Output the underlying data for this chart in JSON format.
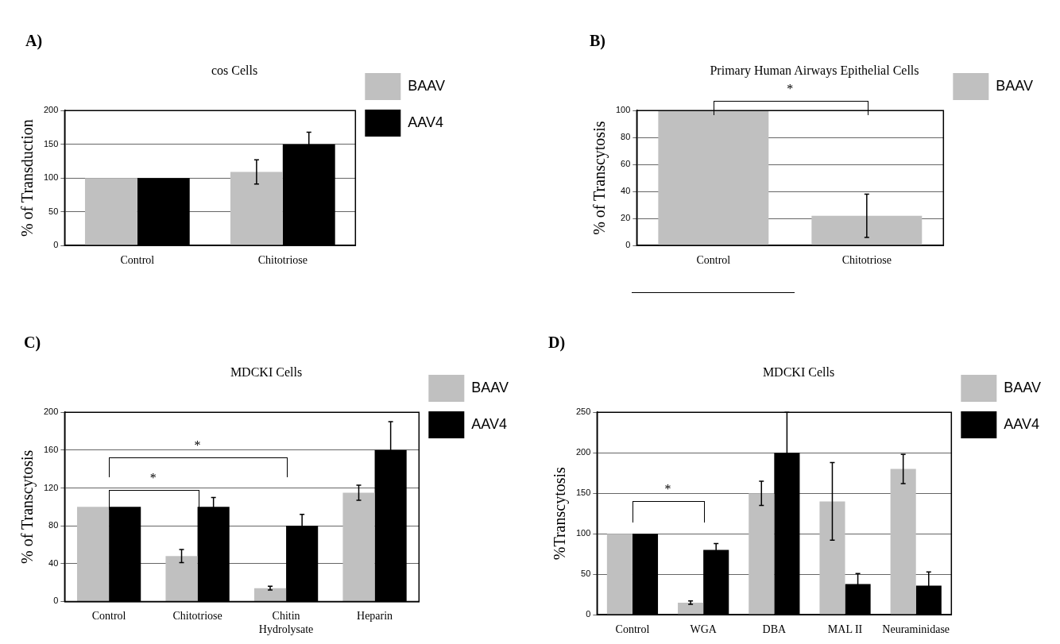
{
  "chart_data": [
    {
      "type": "bar",
      "title": "cos Cells",
      "ylabel": "% of Transduction",
      "categories": [
        "Control",
        "Chitotriose"
      ],
      "series": [
        {
          "name": "BAAV",
          "color": "#c0c0c0",
          "values": [
            100,
            109
          ],
          "errors": [
            null,
            18
          ]
        },
        {
          "name": "AAV4",
          "color": "#000000",
          "values": [
            100,
            150
          ],
          "errors": [
            null,
            18
          ]
        }
      ],
      "ylim": [
        0,
        200
      ],
      "yticks": [
        0,
        50,
        100,
        150,
        200
      ],
      "grid": "y",
      "legend": "right",
      "annotations": [
        "A)"
      ]
    },
    {
      "type": "bar",
      "title": "Primary Human Airways Epithelial Cells",
      "ylabel": "% of Transcytosis",
      "categories": [
        "Control",
        "Chitotriose"
      ],
      "series": [
        {
          "name": "BAAV",
          "color": "#c0c0c0",
          "values": [
            100,
            22
          ],
          "errors": [
            null,
            16
          ]
        }
      ],
      "ylim": [
        0,
        100
      ],
      "yticks": [
        0,
        20,
        40,
        60,
        80,
        100
      ],
      "grid": "y",
      "legend": "right",
      "annotations": [
        "B)",
        "*"
      ]
    },
    {
      "type": "bar",
      "title": "MDCKI Cells",
      "ylabel": "% of Transcytosis",
      "categories": [
        "Control",
        "Chitotriose",
        "Chitin Hydrolysate",
        "Heparin"
      ],
      "series": [
        {
          "name": "BAAV",
          "color": "#c0c0c0",
          "values": [
            100,
            48,
            14,
            115
          ],
          "errors": [
            null,
            7,
            2,
            8
          ]
        },
        {
          "name": "AAV4",
          "color": "#000000",
          "values": [
            100,
            100,
            80,
            160
          ],
          "errors": [
            null,
            10,
            12,
            30
          ]
        }
      ],
      "ylim": [
        0,
        200
      ],
      "yticks": [
        0,
        40,
        80,
        120,
        160,
        200
      ],
      "grid": "y",
      "legend": "right",
      "annotations": [
        "C)",
        "*",
        "*"
      ]
    },
    {
      "type": "bar",
      "title": "MDCKI Cells",
      "ylabel": "%Transcytosis",
      "categories": [
        "Control",
        "WGA",
        "DBA",
        "MAL II",
        "Neuraminidase"
      ],
      "series": [
        {
          "name": "BAAV",
          "color": "#c0c0c0",
          "values": [
            100,
            15,
            150,
            140,
            180
          ],
          "errors": [
            null,
            2,
            15,
            48,
            18
          ]
        },
        {
          "name": "AAV4",
          "color": "#000000",
          "values": [
            100,
            80,
            200,
            38,
            36
          ],
          "errors": [
            null,
            8,
            50,
            13,
            17
          ]
        }
      ],
      "ylim": [
        0,
        250
      ],
      "yticks": [
        0,
        50,
        100,
        150,
        200,
        250
      ],
      "grid": "y",
      "legend": "right",
      "annotations": [
        "D)",
        "*"
      ]
    }
  ]
}
